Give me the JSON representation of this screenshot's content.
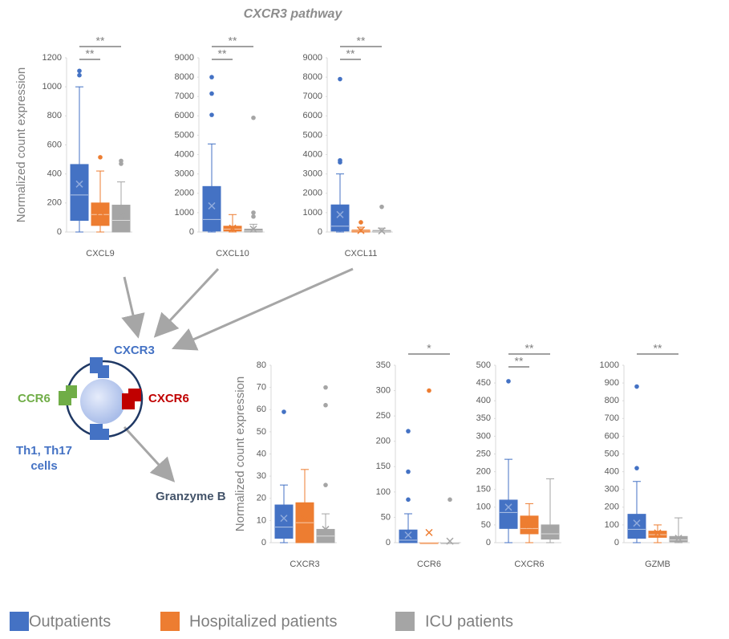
{
  "title": "CXCR3 pathway",
  "legend": [
    {
      "name": "Outpatients",
      "color": "#4472c4"
    },
    {
      "name": "Hospitalized patients",
      "color": "#ed7d31"
    },
    {
      "name": "ICU patients",
      "color": "#a5a5a5"
    }
  ],
  "diagram": {
    "cxcr3": "CXCR3",
    "ccr6": "CCR6",
    "cxcr6": "CXCR6",
    "cells": "Th1, Th17 cells",
    "output": "Granzyme B"
  },
  "chart_data": [
    {
      "type": "box",
      "category": "CXCL9",
      "ylabel": "Normalized count expression",
      "ylim": [
        0,
        1200
      ],
      "yticks": [
        0,
        200,
        400,
        600,
        800,
        1000,
        1200
      ],
      "vs_hospitalized": "**",
      "vs_icu": "**",
      "boxes": [
        {
          "min": 0,
          "q1": 80,
          "median": 255,
          "q3": 465,
          "max": 1000,
          "mean": 330,
          "outliers": [
            1110,
            1080
          ]
        },
        {
          "min": 0,
          "q1": 45,
          "median": 120,
          "q3": 200,
          "max": 420,
          "mean": 140,
          "outliers": [
            515
          ]
        },
        {
          "min": 0,
          "q1": 0,
          "median": 80,
          "q3": 185,
          "max": 345,
          "mean": 110,
          "outliers": [
            470,
            490
          ]
        }
      ]
    },
    {
      "type": "box",
      "category": "CXCL10",
      "ylim": [
        0,
        9000
      ],
      "yticks": [
        0,
        1000,
        2000,
        3000,
        4000,
        5000,
        6000,
        7000,
        8000,
        9000
      ],
      "vs_hospitalized": "**",
      "vs_icu": "**",
      "boxes": [
        {
          "min": 0,
          "q1": 50,
          "median": 650,
          "q3": 2350,
          "max": 4550,
          "mean": 1350,
          "outliers": [
            8000,
            7150,
            6050
          ]
        },
        {
          "min": 0,
          "q1": 50,
          "median": 150,
          "q3": 300,
          "max": 900,
          "mean": 200,
          "outliers": []
        },
        {
          "min": 0,
          "q1": 0,
          "median": 50,
          "q3": 150,
          "max": 400,
          "mean": 150,
          "outliers": [
            5900,
            1000,
            800
          ]
        }
      ]
    },
    {
      "type": "box",
      "category": "CXCL11",
      "ylim": [
        0,
        9000
      ],
      "yticks": [
        0,
        1000,
        2000,
        3000,
        4000,
        5000,
        6000,
        7000,
        8000,
        9000
      ],
      "vs_hospitalized": "**",
      "vs_icu": "**",
      "boxes": [
        {
          "min": 0,
          "q1": 50,
          "median": 300,
          "q3": 1400,
          "max": 3000,
          "mean": 900,
          "outliers": [
            7900,
            3700,
            3600
          ]
        },
        {
          "min": 0,
          "q1": 0,
          "median": 50,
          "q3": 100,
          "max": 250,
          "mean": 80,
          "outliers": [
            500
          ]
        },
        {
          "min": 0,
          "q1": 0,
          "median": 30,
          "q3": 80,
          "max": 200,
          "mean": 60,
          "outliers": [
            1300
          ]
        }
      ]
    },
    {
      "type": "box",
      "category": "CXCR3",
      "ylabel": "Normalized count expression",
      "ylim": [
        0,
        80
      ],
      "yticks": [
        0,
        10,
        20,
        30,
        40,
        50,
        60,
        70,
        80
      ],
      "boxes": [
        {
          "min": 0,
          "q1": 2,
          "median": 7,
          "q3": 17,
          "max": 26,
          "mean": 11,
          "outliers": [
            59
          ]
        },
        {
          "min": 0,
          "q1": 0,
          "median": 9,
          "q3": 18,
          "max": 33,
          "mean": 11,
          "outliers": []
        },
        {
          "min": 0,
          "q1": 0,
          "median": 3,
          "q3": 6,
          "max": 13,
          "mean": 6,
          "outliers": [
            26,
            62,
            70
          ]
        }
      ]
    },
    {
      "type": "box",
      "category": "CCR6",
      "ylim": [
        0,
        350
      ],
      "yticks": [
        0,
        50,
        100,
        150,
        200,
        250,
        300,
        350
      ],
      "vs_icu": "*",
      "boxes": [
        {
          "min": 0,
          "q1": 0,
          "median": 5,
          "q3": 25,
          "max": 57,
          "mean": 15,
          "outliers": [
            220,
            140,
            85
          ]
        },
        {
          "min": 0,
          "q1": 0,
          "median": 0,
          "q3": 0,
          "max": 0,
          "mean": 20,
          "outliers": [
            300
          ]
        },
        {
          "min": 0,
          "q1": 0,
          "median": 0,
          "q3": 0,
          "max": 0,
          "mean": 3,
          "outliers": [
            85
          ]
        }
      ]
    },
    {
      "type": "box",
      "category": "CXCR6",
      "ylim": [
        0,
        500
      ],
      "yticks": [
        0,
        50,
        100,
        150,
        200,
        250,
        300,
        350,
        400,
        450,
        500
      ],
      "vs_hospitalized": "**",
      "vs_icu": "**",
      "boxes": [
        {
          "min": 0,
          "q1": 40,
          "median": 85,
          "q3": 120,
          "max": 235,
          "mean": 100,
          "outliers": [
            455
          ]
        },
        {
          "min": 0,
          "q1": 25,
          "median": 40,
          "q3": 75,
          "max": 110,
          "mean": 50,
          "outliers": []
        },
        {
          "min": 0,
          "q1": 10,
          "median": 25,
          "q3": 50,
          "max": 180,
          "mean": 40,
          "outliers": []
        }
      ]
    },
    {
      "type": "box",
      "category": "GZMB",
      "ylim": [
        0,
        1000
      ],
      "yticks": [
        0,
        100,
        200,
        300,
        400,
        500,
        600,
        700,
        800,
        900,
        1000
      ],
      "vs_icu": "**",
      "boxes": [
        {
          "min": 0,
          "q1": 25,
          "median": 75,
          "q3": 160,
          "max": 345,
          "mean": 110,
          "outliers": [
            880,
            420
          ]
        },
        {
          "min": 0,
          "q1": 30,
          "median": 45,
          "q3": 65,
          "max": 100,
          "mean": 55,
          "outliers": []
        },
        {
          "min": 0,
          "q1": 5,
          "median": 15,
          "q3": 35,
          "max": 140,
          "mean": 25,
          "outliers": []
        }
      ]
    }
  ]
}
